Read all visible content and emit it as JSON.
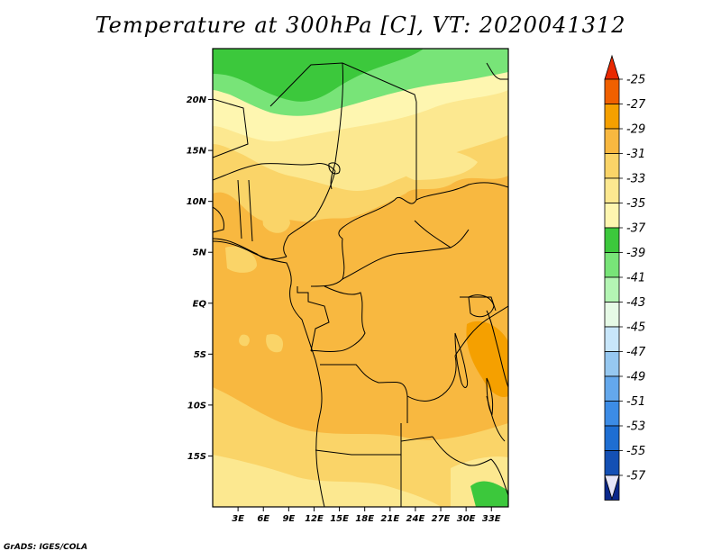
{
  "title": "Temperature at 300hPa [C], VT: 2020041312",
  "credit": "GrADS: IGES/COLA",
  "map": {
    "lon_range": [
      0,
      35
    ],
    "lat_range": [
      -20,
      25
    ],
    "lat_ticks": [
      {
        "value": 20,
        "label": "20N"
      },
      {
        "value": 15,
        "label": "15N"
      },
      {
        "value": 10,
        "label": "10N"
      },
      {
        "value": 5,
        "label": "5N"
      },
      {
        "value": 0,
        "label": "EQ"
      },
      {
        "value": -5,
        "label": "5S"
      },
      {
        "value": -10,
        "label": "10S"
      },
      {
        "value": -15,
        "label": "15S"
      }
    ],
    "lon_ticks": [
      {
        "value": 3,
        "label": "3E"
      },
      {
        "value": 6,
        "label": "6E"
      },
      {
        "value": 9,
        "label": "9E"
      },
      {
        "value": 12,
        "label": "12E"
      },
      {
        "value": 15,
        "label": "15E"
      },
      {
        "value": 18,
        "label": "18E"
      },
      {
        "value": 21,
        "label": "21E"
      },
      {
        "value": 24,
        "label": "24E"
      },
      {
        "value": 27,
        "label": "27E"
      },
      {
        "value": 30,
        "label": "30E"
      },
      {
        "value": 33,
        "label": "33E"
      }
    ]
  },
  "colorbar": {
    "levels": [
      {
        "label": "-25",
        "color": "#f06000"
      },
      {
        "label": "-27",
        "color": "#f5a000"
      },
      {
        "label": "-29",
        "color": "#f8b840"
      },
      {
        "label": "-31",
        "color": "#fad468"
      },
      {
        "label": "-33",
        "color": "#fce890"
      },
      {
        "label": "-35",
        "color": "#fef6b0"
      },
      {
        "label": "-37",
        "color": "#3cc83c"
      },
      {
        "label": "-39",
        "color": "#78e478"
      },
      {
        "label": "-41",
        "color": "#b4f5b4"
      },
      {
        "label": "-43",
        "color": "#e6fae6"
      },
      {
        "label": "-45",
        "color": "#c8e6fa"
      },
      {
        "label": "-47",
        "color": "#96c8f0"
      },
      {
        "label": "-49",
        "color": "#64a8ec"
      },
      {
        "label": "-51",
        "color": "#3c8ce6"
      },
      {
        "label": "-53",
        "color": "#1e6ed2"
      },
      {
        "label": "-55",
        "color": "#1450b4"
      },
      {
        "label": "-57",
        "color": "#0a288c"
      }
    ],
    "top_color": "#e82800",
    "bottom_color": "#e6e6f8"
  },
  "palette": {
    "cream": "#fef6b0",
    "light_yellow": "#fce890",
    "yellow": "#fad468",
    "light_orange": "#f8b840",
    "orange": "#f5a000",
    "green": "#3cc83c",
    "light_green": "#78e478"
  }
}
